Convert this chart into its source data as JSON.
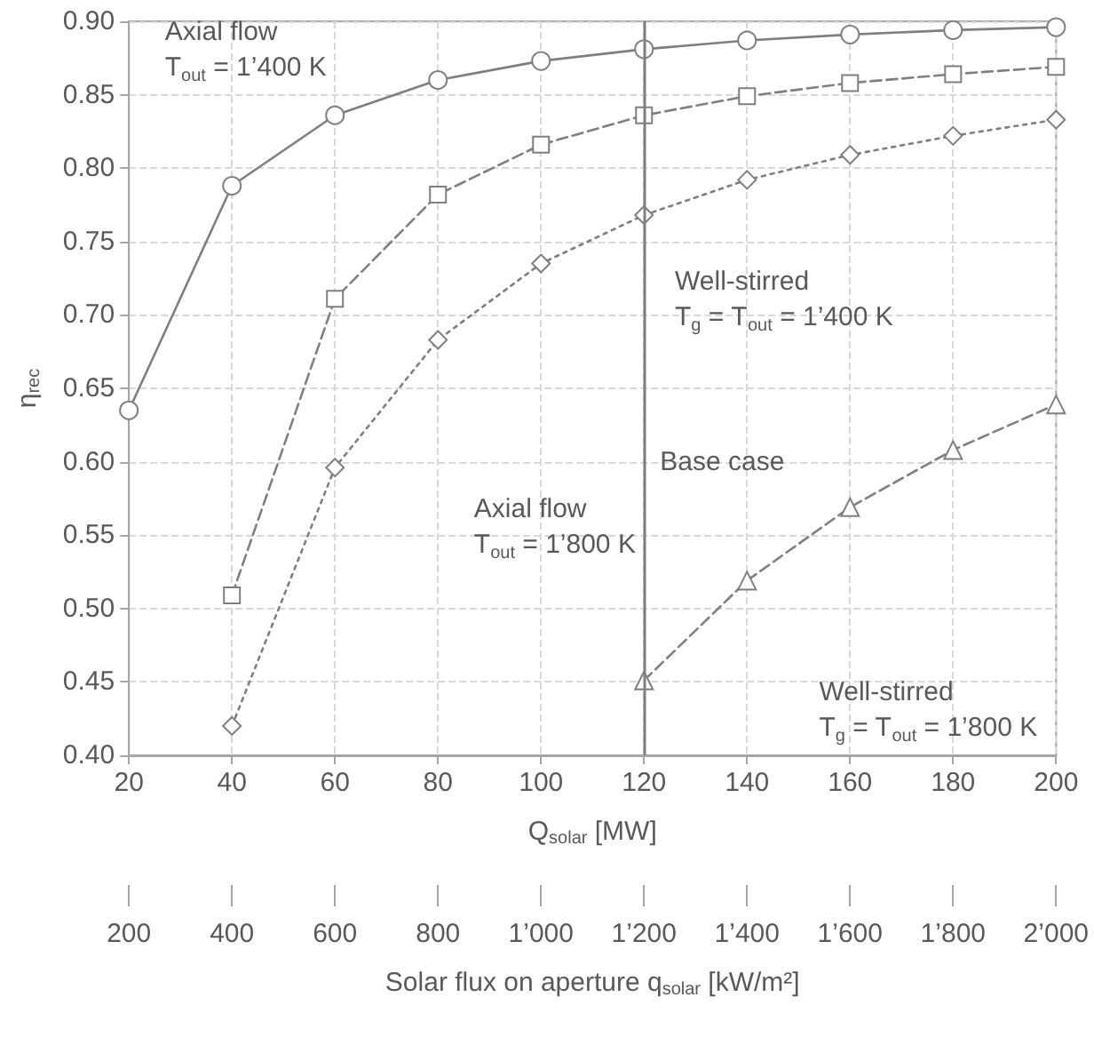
{
  "chart_data": {
    "type": "line",
    "xlabel": "Q$_{solar}$ [MW]",
    "ylabel": "η$_{rec}$",
    "x2label": "Solar flux on aperture q$_{solar}$ [kW/m²]",
    "xlim": [
      20,
      200
    ],
    "xticks": [
      20,
      40,
      60,
      80,
      100,
      120,
      140,
      160,
      180,
      200
    ],
    "x2lim": [
      200,
      2000
    ],
    "x2ticks": [
      200,
      400,
      600,
      800,
      {
        "value": 1000,
        "label": "1’000"
      },
      {
        "value": 1200,
        "label": "1’200"
      },
      {
        "value": 1400,
        "label": "1’400"
      },
      {
        "value": 1600,
        "label": "1’600"
      },
      {
        "value": 1800,
        "label": "1’800"
      },
      {
        "value": 2000,
        "label": "2’000"
      }
    ],
    "ylim": [
      0.4,
      0.9
    ],
    "yticks": [
      {
        "value": 0.4,
        "label": "0.40"
      },
      {
        "value": 0.45,
        "label": "0.45"
      },
      {
        "value": 0.5,
        "label": "0.50"
      },
      {
        "value": 0.55,
        "label": "0.55"
      },
      {
        "value": 0.6,
        "label": "0.60"
      },
      {
        "value": 0.65,
        "label": "0.65"
      },
      {
        "value": 0.7,
        "label": "0.70"
      },
      {
        "value": 0.75,
        "label": "0.75"
      },
      {
        "value": 0.8,
        "label": "0.80"
      },
      {
        "value": 0.85,
        "label": "0.85"
      },
      {
        "value": 0.9,
        "label": "0.90"
      }
    ],
    "grid": true,
    "series": [
      {
        "color": "#7f7f7f",
        "marker": "circle",
        "line_style": "solid",
        "x": [
          20,
          40,
          60,
          80,
          100,
          120,
          140,
          160,
          180,
          200
        ],
        "values": [
          0.635,
          0.788,
          0.836,
          0.86,
          0.873,
          0.881,
          0.887,
          0.891,
          0.894,
          0.896
        ]
      },
      {
        "color": "#7f7f7f",
        "marker": "square",
        "line_style": "dashed",
        "x": [
          40,
          60,
          80,
          100,
          120,
          140,
          160,
          180,
          200
        ],
        "values": [
          0.509,
          0.711,
          0.782,
          0.816,
          0.836,
          0.849,
          0.858,
          0.864,
          0.869
        ]
      },
      {
        "color": "#7f7f7f",
        "marker": "diamond",
        "line_style": "dotted",
        "x": [
          40,
          60,
          80,
          100,
          120,
          140,
          160,
          180,
          200
        ],
        "values": [
          0.42,
          0.596,
          0.683,
          0.735,
          0.768,
          0.792,
          0.809,
          0.822,
          0.833
        ]
      },
      {
        "color": "#7f7f7f",
        "marker": "triangle",
        "line_style": "dashed",
        "x": [
          120,
          140,
          160,
          180,
          200
        ],
        "values": [
          0.451,
          0.519,
          0.569,
          0.608,
          0.639
        ]
      }
    ],
    "ref_lines": [
      {
        "axis": "x",
        "value": 120,
        "label": "Base case",
        "color": "#7f7f7f",
        "line_style": "solid"
      }
    ],
    "annotations": [
      "Axial flow\nT$_{out}$ = 1’400 K",
      "Axial flow\nT$_{out}$ = 1’800 K",
      "Well-stirred\nT$_{g}$ = T$_{out}$ = 1’400 K",
      "Well-stirred\nT$_{g}$ = T$_{out}$ = 1’800 K"
    ]
  }
}
